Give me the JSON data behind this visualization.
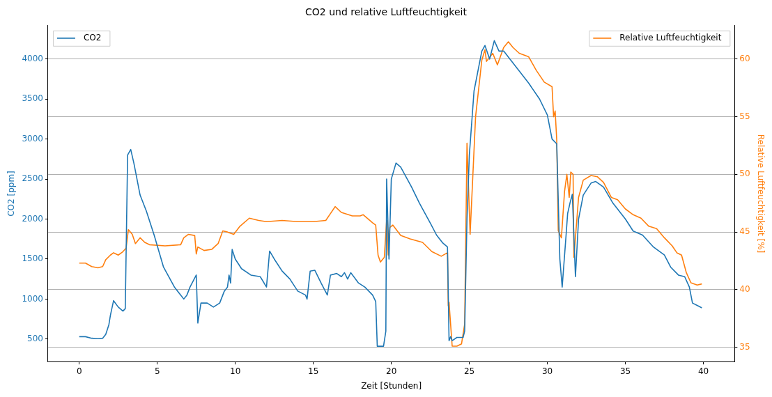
{
  "chart_data": {
    "type": "line",
    "title": "CO2 und relative Luftfeuchtigkeit",
    "xlabel": "Zeit [Stunden]",
    "ylabel": "CO2 [ppm]",
    "y2label": "Relative Luftfeuchtigkeit [%]",
    "xlim": [
      -2,
      42
    ],
    "xticks": [
      0,
      5,
      10,
      15,
      20,
      25,
      30,
      35,
      40
    ],
    "ylim": [
      218,
      4418
    ],
    "yticks": [
      500,
      1000,
      1500,
      2000,
      2500,
      3000,
      3500,
      4000
    ],
    "y2lim": [
      33.76,
      62.9
    ],
    "y2ticks": [
      35,
      40,
      45,
      50,
      55,
      60
    ],
    "grid": "y",
    "legend": "top",
    "marker": "none",
    "line_style": "solid",
    "series": [
      {
        "name": "CO2",
        "color": "#1f77b4",
        "axis": "y",
        "x": [
          0,
          0.4,
          0.8,
          1.2,
          1.5,
          1.7,
          1.9,
          2.0,
          2.2,
          2.5,
          2.8,
          2.95,
          3.1,
          3.3,
          3.5,
          3.9,
          4.3,
          4.8,
          5.4,
          6.1,
          6.7,
          6.9,
          7.1,
          7.5,
          7.6,
          7.8,
          8.2,
          8.6,
          9.0,
          9.3,
          9.5,
          9.6,
          9.7,
          9.8,
          10.0,
          10.4,
          11.0,
          11.6,
          12.0,
          12.2,
          12.5,
          13.0,
          13.5,
          14.0,
          14.5,
          14.6,
          14.8,
          15.1,
          15.5,
          15.9,
          16.1,
          16.5,
          16.8,
          17.0,
          17.2,
          17.4,
          17.9,
          18.3,
          18.8,
          19.0,
          19.1,
          19.5,
          19.65,
          19.7,
          19.85,
          20.0,
          20.3,
          20.6,
          21.3,
          21.8,
          22.5,
          22.9,
          23.3,
          23.6,
          23.7,
          23.8,
          23.9,
          24.2,
          24.6,
          24.7,
          24.85,
          25.0,
          25.3,
          25.8,
          26.0,
          26.3,
          26.6,
          26.9,
          27.2,
          28.0,
          28.8,
          29.5,
          30.0,
          30.3,
          30.6,
          30.8,
          30.95,
          31.2,
          31.3,
          31.45,
          31.6,
          31.8,
          32.0,
          32.3,
          32.8,
          33.1,
          33.6,
          34.2,
          35.0,
          35.5,
          36.1,
          36.8,
          37.5,
          37.9,
          38.4,
          38.8,
          39.1,
          39.3,
          39.6,
          39.9
        ],
        "values": [
          530,
          530,
          510,
          505,
          510,
          560,
          680,
          800,
          980,
          900,
          850,
          880,
          2800,
          2870,
          2700,
          2300,
          2100,
          1800,
          1400,
          1150,
          1000,
          1050,
          1150,
          1300,
          700,
          950,
          950,
          900,
          950,
          1100,
          1150,
          1300,
          1200,
          1620,
          1500,
          1380,
          1300,
          1280,
          1150,
          1600,
          1500,
          1350,
          1250,
          1100,
          1050,
          1000,
          1350,
          1360,
          1200,
          1050,
          1300,
          1320,
          1280,
          1330,
          1250,
          1330,
          1200,
          1150,
          1050,
          970,
          410,
          410,
          600,
          2500,
          1500,
          2500,
          2700,
          2650,
          2400,
          2200,
          1950,
          1800,
          1700,
          1650,
          480,
          530,
          480,
          520,
          520,
          600,
          2000,
          2800,
          3600,
          4100,
          4170,
          4000,
          4230,
          4100,
          4100,
          3900,
          3700,
          3500,
          3300,
          3000,
          2940,
          1500,
          1150,
          1800,
          2070,
          2200,
          2310,
          1280,
          2000,
          2300,
          2450,
          2470,
          2400,
          2200,
          2000,
          1850,
          1800,
          1650,
          1550,
          1400,
          1300,
          1280,
          1150,
          950,
          920,
          890
        ]
      },
      {
        "name": "Relative Luftfeuchtigkeit",
        "color": "#ff7f0e",
        "axis": "y2",
        "x": [
          0,
          0.4,
          0.8,
          1.2,
          1.5,
          1.7,
          2.0,
          2.2,
          2.5,
          2.8,
          3.0,
          3.15,
          3.4,
          3.6,
          3.9,
          4.2,
          4.5,
          5.5,
          6.5,
          6.7,
          7.0,
          7.4,
          7.5,
          7.6,
          8.0,
          8.5,
          8.9,
          9.2,
          9.5,
          9.9,
          10.3,
          10.9,
          11.5,
          12.0,
          13.0,
          14.0,
          15.0,
          15.8,
          16.1,
          16.4,
          16.8,
          17.5,
          18.0,
          18.2,
          18.8,
          19.0,
          19.15,
          19.3,
          19.55,
          19.7,
          19.8,
          19.9,
          20.1,
          20.6,
          21.2,
          22.0,
          22.6,
          23.2,
          23.6,
          23.65,
          23.7,
          23.8,
          23.9,
          24.2,
          24.5,
          24.7,
          24.85,
          25.05,
          25.4,
          25.8,
          26.0,
          26.1,
          26.5,
          26.8,
          27.2,
          27.5,
          27.8,
          28.2,
          28.8,
          29.3,
          29.8,
          30.3,
          30.4,
          30.5,
          30.6,
          30.7,
          30.9,
          31.1,
          31.25,
          31.4,
          31.5,
          31.65,
          31.7,
          32.0,
          32.3,
          32.8,
          33.2,
          33.6,
          34.1,
          34.5,
          35.0,
          35.5,
          36.0,
          36.5,
          37.0,
          37.5,
          38.0,
          38.3,
          38.6,
          38.9,
          39.2,
          39.6,
          39.9
        ],
        "values": [
          42.3,
          42.3,
          42.0,
          41.9,
          42.0,
          42.6,
          43.0,
          43.2,
          43.0,
          43.3,
          43.6,
          45.2,
          44.8,
          44.0,
          44.5,
          44.1,
          43.9,
          43.8,
          43.9,
          44.5,
          44.8,
          44.7,
          43.1,
          43.7,
          43.4,
          43.5,
          44.0,
          45.1,
          45.0,
          44.8,
          45.5,
          46.2,
          46.0,
          45.9,
          46.0,
          45.9,
          45.9,
          46.0,
          46.6,
          47.2,
          46.7,
          46.4,
          46.4,
          46.5,
          45.8,
          45.6,
          43.0,
          42.4,
          42.8,
          46.0,
          43.0,
          45.4,
          45.6,
          44.7,
          44.4,
          44.1,
          43.3,
          42.9,
          43.2,
          38.6,
          38.9,
          37.0,
          35.1,
          35.1,
          35.3,
          37.0,
          52.7,
          44.8,
          55.0,
          59.9,
          60.8,
          59.8,
          60.5,
          59.5,
          61.0,
          61.5,
          61.0,
          60.5,
          60.2,
          59.0,
          58.0,
          57.6,
          55.0,
          55.5,
          53.0,
          45.1,
          44.5,
          48.5,
          50.0,
          48.0,
          50.2,
          50.0,
          42.8,
          48.0,
          49.5,
          49.9,
          49.8,
          49.3,
          48.0,
          47.8,
          47.0,
          46.5,
          46.2,
          45.5,
          45.3,
          44.5,
          43.8,
          43.2,
          43.0,
          41.5,
          40.6,
          40.4,
          40.5
        ]
      }
    ]
  }
}
